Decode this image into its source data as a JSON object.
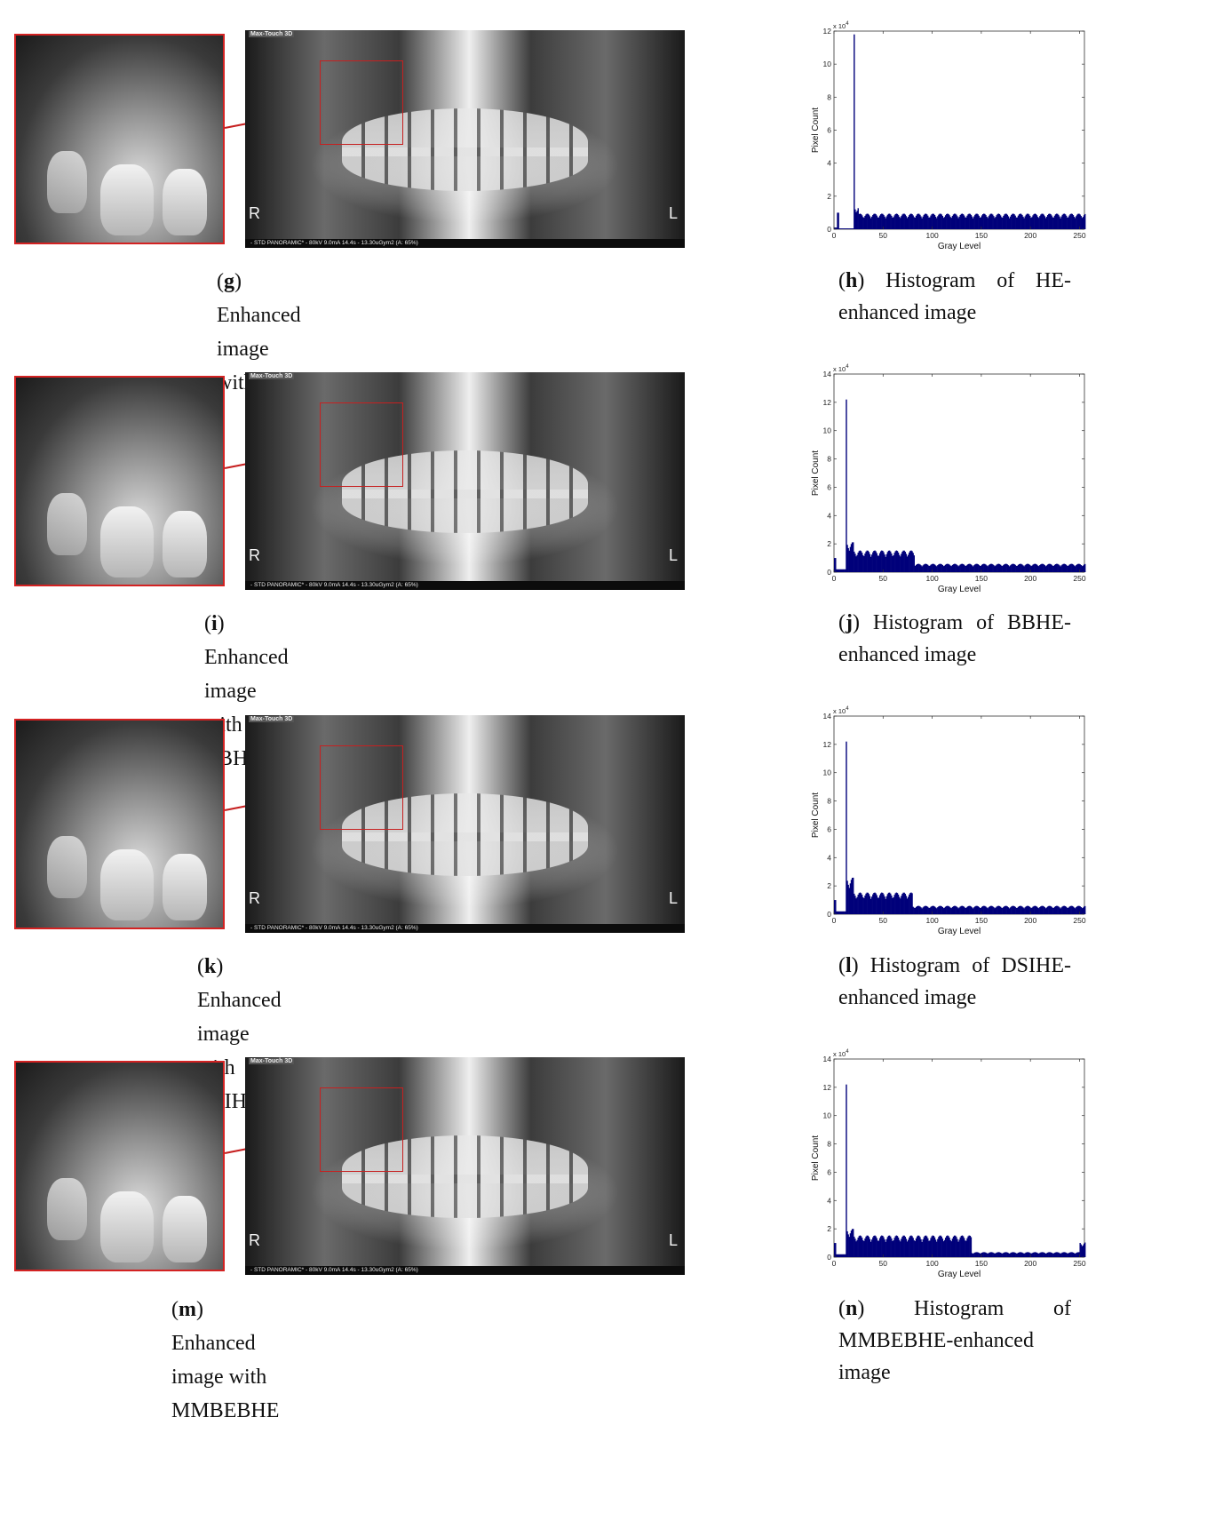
{
  "panels": [
    {
      "id": "g",
      "label": "g",
      "caption": "Enhanced image with HE",
      "pano_brand": "Max-Touch 3D",
      "pano_footer": "- STD PANORAMIC* - 80kV 9.0mA 14.4s - 13.30uGym2 (A: 65%)",
      "left_marker": "R",
      "right_marker": "L"
    },
    {
      "id": "i",
      "label": "i",
      "caption": "Enhanced image with BBHE",
      "pano_brand": "Max-Touch 3D",
      "pano_footer": "- STD PANORAMIC* - 80kV 9.0mA 14.4s - 13.30uGym2 (A: 65%)",
      "left_marker": "R",
      "right_marker": "L"
    },
    {
      "id": "k",
      "label": "k",
      "caption": "Enhanced image with DSIHE",
      "pano_brand": "Max-Touch 3D",
      "pano_footer": "- STD PANORAMIC* - 80kV 9.0mA 14.4s - 13.30uGym2 (A: 65%)",
      "left_marker": "R",
      "right_marker": "L"
    },
    {
      "id": "m",
      "label": "m",
      "caption": "Enhanced image with MMBEBHE",
      "pano_brand": "Max-Touch 3D",
      "pano_footer": "- STD PANORAMIC* - 80kV 9.0mA 14.4s - 13.30uGym2 (A: 65%)",
      "left_marker": "R",
      "right_marker": "L"
    }
  ],
  "histograms": [
    {
      "id": "h",
      "label": "h",
      "caption_rest": "Histogram of HE-enhanced image"
    },
    {
      "id": "j",
      "label": "j",
      "caption_rest": "Histogram of BBHE-enhanced image"
    },
    {
      "id": "l",
      "label": "l",
      "caption_rest": "Histogram of DSIHE-enhanced image"
    },
    {
      "id": "n",
      "label": "n",
      "caption_rest": "Histogram of MMBEBHE-enhanced image"
    }
  ],
  "chart_data": [
    {
      "type": "bar",
      "xlabel": "Gray Level",
      "ylabel": "Pixel Count",
      "y_multiplier": "x 10",
      "y_exponent": "4",
      "xlim": [
        0,
        255
      ],
      "ylim": [
        0,
        12
      ],
      "xticks": [
        0,
        50,
        100,
        150,
        200,
        250
      ],
      "yticks": [
        0,
        2,
        4,
        6,
        8,
        10,
        12
      ],
      "bar_color": "#00007a",
      "segments": [
        {
          "from": 0,
          "to": 3,
          "level": 0.1
        },
        {
          "from": 3,
          "to": 5,
          "level": 1.0
        },
        {
          "from": 5,
          "to": 20,
          "level": 0.05
        },
        {
          "from": 20,
          "to": 21,
          "level": 11.8
        },
        {
          "from": 21,
          "to": 25,
          "level": 1.2
        },
        {
          "from": 25,
          "to": 255,
          "level": 0.8
        }
      ]
    },
    {
      "type": "bar",
      "xlabel": "Gray Level",
      "ylabel": "Pixel Count",
      "y_multiplier": "x 10",
      "y_exponent": "4",
      "xlim": [
        0,
        255
      ],
      "ylim": [
        0,
        14
      ],
      "xticks": [
        0,
        50,
        100,
        150,
        200,
        250
      ],
      "yticks": [
        0,
        2,
        4,
        6,
        8,
        10,
        12,
        14
      ],
      "bar_color": "#00007a",
      "segments": [
        {
          "from": 0,
          "to": 2,
          "level": 1.0
        },
        {
          "from": 2,
          "to": 12,
          "level": 0.2
        },
        {
          "from": 12,
          "to": 13,
          "level": 12.2
        },
        {
          "from": 13,
          "to": 20,
          "level": 1.8
        },
        {
          "from": 20,
          "to": 82,
          "level": 1.3
        },
        {
          "from": 82,
          "to": 255,
          "level": 0.5
        }
      ]
    },
    {
      "type": "bar",
      "xlabel": "Gray Level",
      "ylabel": "Pixel Count",
      "y_multiplier": "x 10",
      "y_exponent": "4",
      "xlim": [
        0,
        255
      ],
      "ylim": [
        0,
        14
      ],
      "xticks": [
        0,
        50,
        100,
        150,
        200,
        250
      ],
      "yticks": [
        0,
        2,
        4,
        6,
        8,
        10,
        12,
        14
      ],
      "bar_color": "#00007a",
      "segments": [
        {
          "from": 0,
          "to": 2,
          "level": 1.0
        },
        {
          "from": 2,
          "to": 12,
          "level": 0.2
        },
        {
          "from": 12,
          "to": 13,
          "level": 12.2
        },
        {
          "from": 13,
          "to": 20,
          "level": 2.2
        },
        {
          "from": 20,
          "to": 80,
          "level": 1.3
        },
        {
          "from": 80,
          "to": 255,
          "level": 0.5
        }
      ]
    },
    {
      "type": "bar",
      "xlabel": "Gray Level",
      "ylabel": "Pixel Count",
      "y_multiplier": "x 10",
      "y_exponent": "4",
      "xlim": [
        0,
        255
      ],
      "ylim": [
        0,
        14
      ],
      "xticks": [
        0,
        50,
        100,
        150,
        200,
        250
      ],
      "yticks": [
        0,
        2,
        4,
        6,
        8,
        10,
        12,
        14
      ],
      "bar_color": "#00007a",
      "segments": [
        {
          "from": 0,
          "to": 2,
          "level": 1.0
        },
        {
          "from": 2,
          "to": 12,
          "level": 0.2
        },
        {
          "from": 12,
          "to": 13,
          "level": 12.2
        },
        {
          "from": 13,
          "to": 20,
          "level": 1.7
        },
        {
          "from": 20,
          "to": 140,
          "level": 1.3
        },
        {
          "from": 140,
          "to": 250,
          "level": 0.3
        },
        {
          "from": 250,
          "to": 255,
          "level": 0.9
        }
      ]
    }
  ]
}
